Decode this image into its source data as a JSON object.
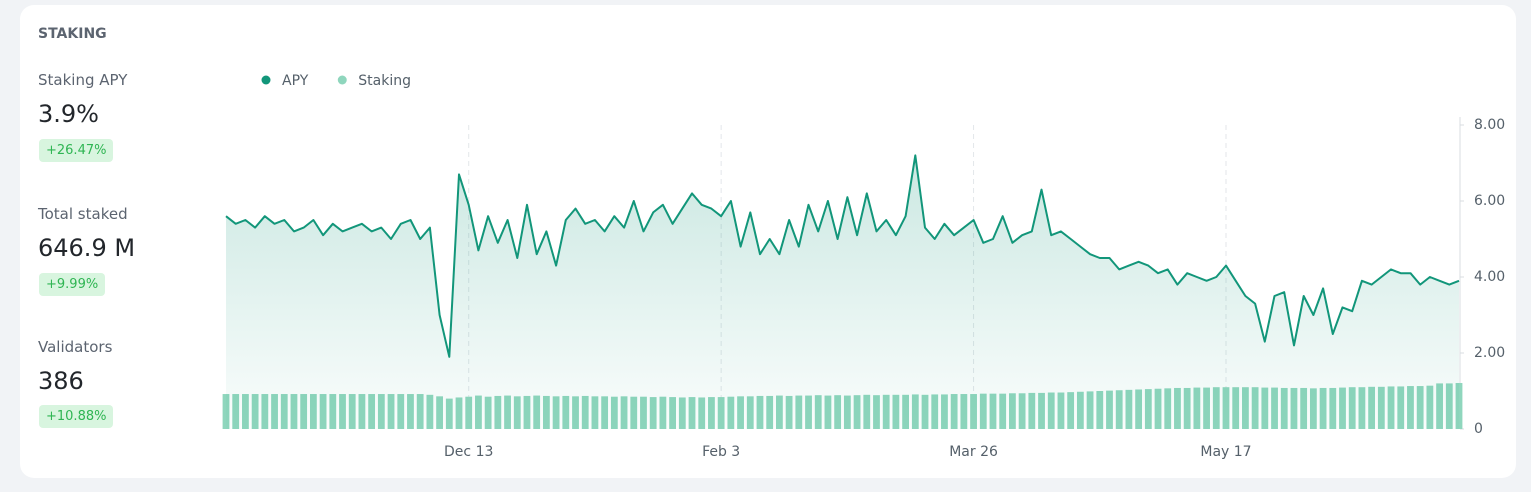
{
  "card_title": "STAKING",
  "stats": [
    {
      "label": "Staking APY",
      "value": "3.9%",
      "change": "+26.47%"
    },
    {
      "label": "Total staked",
      "value": "646.9 M",
      "change": "+9.99%"
    },
    {
      "label": "Validators",
      "value": "386",
      "change": "+10.88%"
    }
  ],
  "chart_data": {
    "type": "line-bar",
    "categories": [
      null,
      null,
      null,
      null,
      null,
      null,
      null,
      null,
      null,
      null,
      null,
      null,
      null,
      null,
      null,
      null,
      null,
      null,
      null,
      null,
      null,
      null,
      null,
      null,
      null,
      "Dec 13",
      null,
      null,
      null,
      null,
      null,
      null,
      null,
      null,
      null,
      null,
      null,
      null,
      null,
      null,
      null,
      null,
      null,
      null,
      null,
      null,
      null,
      null,
      null,
      null,
      null,
      "Feb 3",
      null,
      null,
      null,
      null,
      null,
      null,
      null,
      null,
      null,
      null,
      null,
      null,
      null,
      null,
      null,
      null,
      null,
      null,
      null,
      null,
      null,
      null,
      null,
      null,
      null,
      "Mar 26",
      null,
      null,
      null,
      null,
      null,
      null,
      null,
      null,
      null,
      null,
      null,
      null,
      null,
      null,
      null,
      null,
      null,
      null,
      null,
      null,
      null,
      null,
      null,
      null,
      null,
      "May 17",
      null,
      null,
      null,
      null,
      null,
      null,
      null,
      null,
      null,
      null,
      null,
      null,
      null,
      null,
      null,
      null,
      null,
      null,
      null,
      null,
      null,
      null,
      null,
      null
    ],
    "series": [
      {
        "name": "APY",
        "color": "#12967a",
        "kind": "line",
        "values": [
          5.6,
          5.4,
          5.5,
          5.3,
          5.6,
          5.4,
          5.5,
          5.2,
          5.3,
          5.5,
          5.1,
          5.4,
          5.2,
          5.3,
          5.4,
          5.2,
          5.3,
          5.0,
          5.4,
          5.5,
          5.0,
          5.3,
          3.0,
          1.9,
          6.7,
          5.9,
          4.7,
          5.6,
          4.9,
          5.5,
          4.5,
          5.9,
          4.6,
          5.2,
          4.3,
          5.5,
          5.8,
          5.4,
          5.5,
          5.2,
          5.6,
          5.3,
          6.0,
          5.2,
          5.7,
          5.9,
          5.4,
          5.8,
          6.2,
          5.9,
          5.8,
          5.6,
          6.0,
          4.8,
          5.7,
          4.6,
          5.0,
          4.6,
          5.5,
          4.8,
          5.9,
          5.2,
          6.0,
          5.0,
          6.1,
          5.1,
          6.2,
          5.2,
          5.5,
          5.1,
          5.6,
          7.2,
          5.3,
          5.0,
          5.4,
          5.1,
          5.3,
          5.5,
          4.9,
          5.0,
          5.6,
          4.9,
          5.1,
          5.2,
          6.3,
          5.1,
          5.2,
          5.0,
          4.8,
          4.6,
          4.5,
          4.5,
          4.2,
          4.3,
          4.4,
          4.3,
          4.1,
          4.2,
          3.8,
          4.1,
          4.0,
          3.9,
          4.0,
          4.3,
          3.9,
          3.5,
          3.3,
          2.3,
          3.5,
          3.6,
          2.2,
          3.5,
          3.0,
          3.7,
          2.5,
          3.2,
          3.1,
          3.9,
          3.8,
          4.0,
          4.2,
          4.1,
          4.1,
          3.8,
          4.0,
          3.9,
          3.8,
          3.9
        ]
      },
      {
        "name": "Staking",
        "color": "#8fd6bd",
        "kind": "bar",
        "values": [
          0.92,
          0.92,
          0.92,
          0.92,
          0.92,
          0.92,
          0.92,
          0.92,
          0.92,
          0.92,
          0.92,
          0.92,
          0.92,
          0.92,
          0.92,
          0.92,
          0.92,
          0.92,
          0.92,
          0.92,
          0.92,
          0.9,
          0.86,
          0.8,
          0.83,
          0.85,
          0.88,
          0.85,
          0.87,
          0.88,
          0.86,
          0.87,
          0.88,
          0.87,
          0.86,
          0.87,
          0.86,
          0.87,
          0.86,
          0.86,
          0.85,
          0.86,
          0.85,
          0.85,
          0.84,
          0.85,
          0.84,
          0.83,
          0.84,
          0.83,
          0.84,
          0.84,
          0.85,
          0.86,
          0.86,
          0.87,
          0.87,
          0.88,
          0.87,
          0.88,
          0.88,
          0.89,
          0.88,
          0.89,
          0.88,
          0.89,
          0.9,
          0.89,
          0.9,
          0.9,
          0.9,
          0.91,
          0.9,
          0.91,
          0.91,
          0.92,
          0.92,
          0.92,
          0.93,
          0.93,
          0.93,
          0.94,
          0.94,
          0.95,
          0.95,
          0.96,
          0.96,
          0.97,
          0.98,
          0.99,
          1.0,
          1.01,
          1.02,
          1.03,
          1.04,
          1.05,
          1.06,
          1.07,
          1.08,
          1.08,
          1.09,
          1.09,
          1.1,
          1.1,
          1.1,
          1.1,
          1.1,
          1.09,
          1.09,
          1.08,
          1.08,
          1.08,
          1.07,
          1.08,
          1.08,
          1.09,
          1.1,
          1.1,
          1.11,
          1.11,
          1.12,
          1.12,
          1.13,
          1.13,
          1.14,
          1.2,
          1.2,
          1.21
        ]
      }
    ],
    "ylim": [
      0,
      8
    ],
    "yticks": [
      0,
      {
        "value": 2,
        "label": "2.00"
      },
      {
        "value": 4,
        "label": "4.00"
      },
      {
        "value": 6,
        "label": "6.00"
      },
      {
        "value": 8,
        "label": "8.00"
      }
    ],
    "grid": true
  }
}
